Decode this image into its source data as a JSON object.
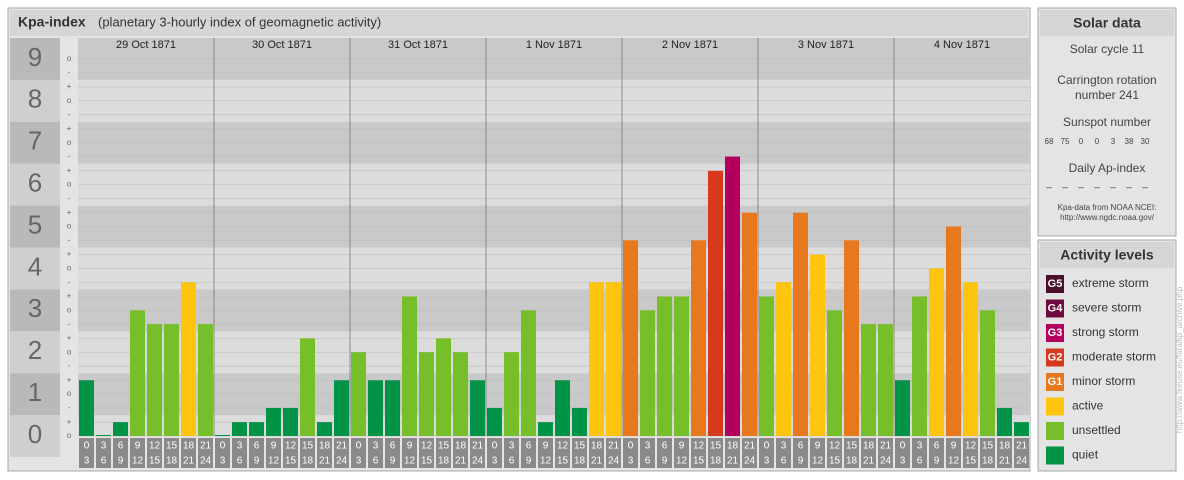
{
  "chart_data": {
    "type": "bar",
    "title": "Kpa-index",
    "subtitle": "(planetary 3-hourly index of geomagnetic activity)",
    "ylim": [
      0,
      9.5
    ],
    "yticks": [
      0,
      1,
      2,
      3,
      4,
      5,
      6,
      7,
      8,
      9
    ],
    "minor_ticks": [
      {
        "value": 0,
        "label": "o"
      },
      {
        "value": 0.33,
        "label": "+"
      },
      {
        "value": 0.67,
        "label": "-"
      },
      {
        "value": 1,
        "label": "o"
      },
      {
        "value": 1.33,
        "label": "+"
      },
      {
        "value": 1.67,
        "label": "-"
      },
      {
        "value": 2,
        "label": "o"
      },
      {
        "value": 2.33,
        "label": "+"
      },
      {
        "value": 2.67,
        "label": "-"
      },
      {
        "value": 3,
        "label": "o"
      },
      {
        "value": 3.33,
        "label": "+"
      },
      {
        "value": 3.67,
        "label": "-"
      },
      {
        "value": 4,
        "label": "o"
      },
      {
        "value": 4.33,
        "label": "+"
      },
      {
        "value": 4.67,
        "label": "-"
      },
      {
        "value": 5,
        "label": "o"
      },
      {
        "value": 5.33,
        "label": "+"
      },
      {
        "value": 5.67,
        "label": "-"
      },
      {
        "value": 6,
        "label": "o"
      },
      {
        "value": 6.33,
        "label": "+"
      },
      {
        "value": 6.67,
        "label": "-"
      },
      {
        "value": 7,
        "label": "o"
      },
      {
        "value": 7.33,
        "label": "+"
      },
      {
        "value": 7.67,
        "label": "-"
      },
      {
        "value": 8,
        "label": "o"
      },
      {
        "value": 8.33,
        "label": "+"
      },
      {
        "value": 8.67,
        "label": "-"
      },
      {
        "value": 9,
        "label": "o"
      }
    ],
    "grid": true,
    "hours": [
      [
        "0",
        "3"
      ],
      [
        "3",
        "6"
      ],
      [
        "6",
        "9"
      ],
      [
        "9",
        "12"
      ],
      [
        "12",
        "15"
      ],
      [
        "15",
        "18"
      ],
      [
        "18",
        "21"
      ],
      [
        "21",
        "24"
      ]
    ],
    "days": [
      {
        "date": "29 Oct 1871",
        "values": [
          1.33,
          0,
          0.33,
          3,
          2.67,
          2.67,
          3.67,
          2.67
        ],
        "colors": [
          "#009245",
          "#009245",
          "#009245",
          "#77bf2a",
          "#77bf2a",
          "#77bf2a",
          "#ffc40e",
          "#77bf2a"
        ]
      },
      {
        "date": "30 Oct 1871",
        "values": [
          0,
          0.33,
          0.33,
          0.67,
          0.67,
          2.33,
          0.33,
          1.33
        ],
        "colors": [
          "#009245",
          "#009245",
          "#009245",
          "#009245",
          "#009245",
          "#77bf2a",
          "#009245",
          "#009245"
        ]
      },
      {
        "date": "31 Oct 1871",
        "values": [
          2,
          1.33,
          1.33,
          3.33,
          2,
          2.33,
          2,
          1.33
        ],
        "colors": [
          "#77bf2a",
          "#009245",
          "#009245",
          "#77bf2a",
          "#77bf2a",
          "#77bf2a",
          "#77bf2a",
          "#009245"
        ]
      },
      {
        "date": "1 Nov 1871",
        "values": [
          0.67,
          2,
          3,
          0.33,
          1.33,
          0.67,
          3.67,
          3.67
        ],
        "colors": [
          "#009245",
          "#77bf2a",
          "#77bf2a",
          "#009245",
          "#009245",
          "#009245",
          "#ffc40e",
          "#ffc40e"
        ]
      },
      {
        "date": "2 Nov 1871",
        "values": [
          4.67,
          3,
          3.33,
          3.33,
          4.67,
          6.33,
          6.67,
          5.33
        ],
        "colors": [
          "#e8781e",
          "#77bf2a",
          "#77bf2a",
          "#77bf2a",
          "#e8781e",
          "#d6391d",
          "#b3005e",
          "#e8781e"
        ]
      },
      {
        "date": "3 Nov 1871",
        "values": [
          3.33,
          3.67,
          5.33,
          4.33,
          3,
          4.67,
          2.67,
          2.67
        ],
        "colors": [
          "#77bf2a",
          "#ffc40e",
          "#e8781e",
          "#ffc40e",
          "#77bf2a",
          "#e8781e",
          "#77bf2a",
          "#77bf2a"
        ]
      },
      {
        "date": "4 Nov 1871",
        "values": [
          1.33,
          3.33,
          4,
          5,
          3.67,
          3,
          0.67,
          0.33
        ],
        "colors": [
          "#009245",
          "#77bf2a",
          "#ffc40e",
          "#e8781e",
          "#ffc40e",
          "#77bf2a",
          "#009245",
          "#009245"
        ]
      }
    ]
  },
  "solar_data": {
    "title": "Solar data",
    "cycle": "Solar cycle 11",
    "carrington": [
      "Carrington rotation",
      "number 241"
    ],
    "sunspot_title": "Sunspot number",
    "sunspot_numbers": [
      68,
      75,
      0,
      0,
      3,
      38,
      30
    ],
    "ap_title": "Daily Ap-index",
    "ap_values": [
      "–",
      "–",
      "–",
      "–",
      "–",
      "–",
      "–"
    ],
    "source": [
      "Kpa-data from NOAA NCEI:",
      "http://www.ngdc.noaa.gov/"
    ]
  },
  "activity_levels": {
    "title": "Activity levels",
    "items": [
      {
        "code": "G5",
        "label": "extreme storm",
        "color": "#4a0f2a"
      },
      {
        "code": "G4",
        "label": "severe storm",
        "color": "#6e0b3e"
      },
      {
        "code": "G3",
        "label": "strong storm",
        "color": "#b3005e"
      },
      {
        "code": "G2",
        "label": "moderate storm",
        "color": "#d6391d"
      },
      {
        "code": "G1",
        "label": "minor storm",
        "color": "#e8781e"
      },
      {
        "label": "active",
        "color": "#ffc40e"
      },
      {
        "label": "unsettled",
        "color": "#77bf2a"
      },
      {
        "label": "quiet",
        "color": "#009245"
      }
    ]
  },
  "credit": "http://www.tkeuse.eu/fara/kp_archive.php"
}
